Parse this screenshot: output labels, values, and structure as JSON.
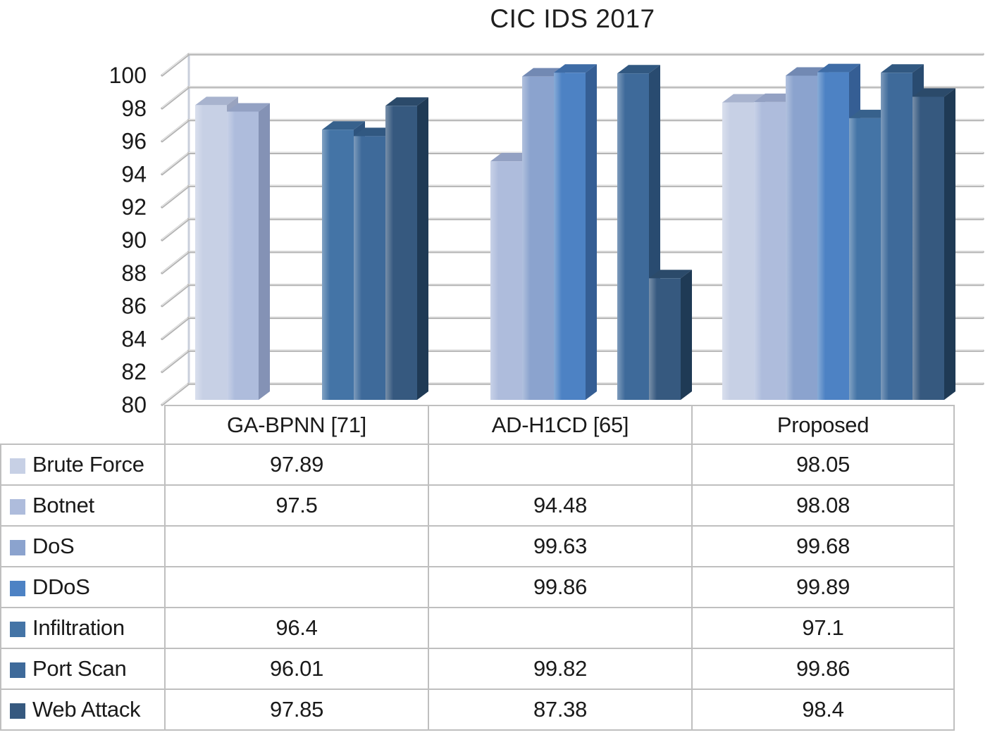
{
  "chart_data": {
    "type": "bar",
    "style": "3d-clustered-column",
    "title": "CIC IDS 2017",
    "categories": [
      "GA-BPNN [71]",
      "AD-H1CD [65]",
      "Proposed"
    ],
    "series": [
      {
        "name": "Brute Force",
        "values": [
          97.89,
          null,
          98.05
        ],
        "color": "#c7d0e5",
        "top_color": "#a8b3ce",
        "side_color": "#99a3bf"
      },
      {
        "name": "Botnet",
        "values": [
          97.5,
          94.48,
          98.08
        ],
        "color": "#aebcdc",
        "top_color": "#93a1c3",
        "side_color": "#8492b5"
      },
      {
        "name": "DoS",
        "values": [
          null,
          99.63,
          99.68
        ],
        "color": "#8ba3ce",
        "top_color": "#7289b3",
        "side_color": "#687fa9"
      },
      {
        "name": "DDoS",
        "values": [
          null,
          99.86,
          99.89
        ],
        "color": "#4d82c4",
        "top_color": "#3e6ca6",
        "side_color": "#355e94"
      },
      {
        "name": "Infiltration",
        "values": [
          96.4,
          null,
          97.1
        ],
        "color": "#4474a6",
        "top_color": "#37618c",
        "side_color": "#2e547e"
      },
      {
        "name": "Port Scan",
        "values": [
          96.01,
          99.82,
          99.86
        ],
        "color": "#3e6a9a",
        "top_color": "#315881",
        "side_color": "#294b70"
      },
      {
        "name": "Web Attack",
        "values": [
          97.85,
          87.38,
          98.4
        ],
        "color": "#36597f",
        "top_color": "#2b4a6a",
        "side_color": "#1f3a55"
      }
    ],
    "y_axis": {
      "min": 80,
      "max": 100,
      "step": 2,
      "tick_labels": [
        "80",
        "82",
        "84",
        "86",
        "88",
        "90",
        "92",
        "94",
        "96",
        "98",
        "100"
      ]
    },
    "grid": true,
    "legend_position": "table-rows-left",
    "colors": {
      "gridline": "#b4b4b4",
      "gridline_highlight": "#eeeeee",
      "wall_edge": "#c9cfdb",
      "table_border": "#bfbfbf",
      "text": "#1a1a1a"
    }
  }
}
